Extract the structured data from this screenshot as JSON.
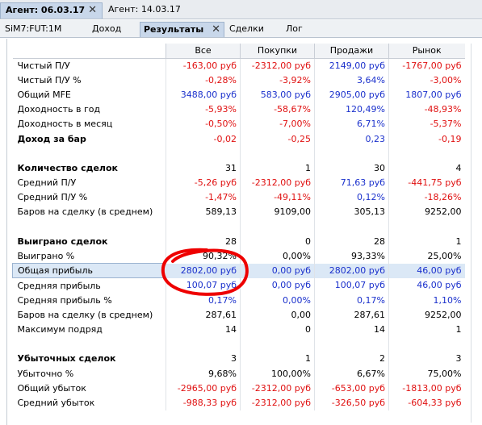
{
  "agent_tabs": [
    {
      "label": "Агент: 06.03.17",
      "active": true
    },
    {
      "label": "Агент: 14.03.17",
      "active": false
    }
  ],
  "sub_tabs": [
    {
      "label": "SiM7:FUT:1M"
    },
    {
      "label": "Доход"
    },
    {
      "label": "Результаты"
    },
    {
      "label": "Сделки"
    },
    {
      "label": "Лог"
    }
  ],
  "columns": [
    "Все",
    "Покупки",
    "Продажи",
    "Рынок"
  ],
  "rows": [
    {
      "label": "Чистый П/У",
      "values": [
        "-163,00 руб",
        "-2312,00 руб",
        "2149,00 руб",
        "-1767,00 руб"
      ],
      "colors": [
        "red",
        "red",
        "blue",
        "red"
      ]
    },
    {
      "label": "Чистый П/У %",
      "values": [
        "-0,28%",
        "-3,92%",
        "3,64%",
        "-3,00%"
      ],
      "colors": [
        "red",
        "red",
        "blue",
        "red"
      ]
    },
    {
      "label": "Общий MFE",
      "values": [
        "3488,00 руб",
        "583,00 руб",
        "2905,00 руб",
        "1807,00 руб"
      ],
      "colors": [
        "blue",
        "blue",
        "blue",
        "blue"
      ]
    },
    {
      "label": "Доходность в год",
      "values": [
        "-5,93%",
        "-58,67%",
        "120,49%",
        "-48,93%"
      ],
      "colors": [
        "red",
        "red",
        "blue",
        "red"
      ]
    },
    {
      "label": "Доходность в месяц",
      "values": [
        "-0,50%",
        "-7,00%",
        "6,71%",
        "-5,37%"
      ],
      "colors": [
        "red",
        "red",
        "blue",
        "red"
      ]
    },
    {
      "label": "Доход за бар",
      "values": [
        "-0,02",
        "-0,25",
        "0,23",
        "-0,19"
      ],
      "colors": [
        "red",
        "red",
        "blue",
        "red"
      ],
      "bold": true
    },
    {
      "spacer": true
    },
    {
      "label": "Количество сделок",
      "values": [
        "31",
        "1",
        "30",
        "4"
      ],
      "colors": [
        "black",
        "black",
        "black",
        "black"
      ],
      "bold": true
    },
    {
      "label": "Средний П/У",
      "values": [
        "-5,26 руб",
        "-2312,00 руб",
        "71,63 руб",
        "-441,75 руб"
      ],
      "colors": [
        "red",
        "red",
        "blue",
        "red"
      ]
    },
    {
      "label": "Средний П/У %",
      "values": [
        "-1,47%",
        "-49,11%",
        "0,12%",
        "-18,26%"
      ],
      "colors": [
        "red",
        "red",
        "blue",
        "red"
      ]
    },
    {
      "label": "Баров на сделку (в среднем)",
      "values": [
        "589,13",
        "9109,00",
        "305,13",
        "9252,00"
      ],
      "colors": [
        "black",
        "black",
        "black",
        "black"
      ]
    },
    {
      "spacer": true
    },
    {
      "label": "Выиграно сделок",
      "values": [
        "28",
        "0",
        "28",
        "1"
      ],
      "colors": [
        "black",
        "black",
        "black",
        "black"
      ],
      "bold": true
    },
    {
      "label": "Выиграно %",
      "values": [
        "90,32%",
        "0,00%",
        "93,33%",
        "25,00%"
      ],
      "colors": [
        "black",
        "black",
        "black",
        "black"
      ]
    },
    {
      "label": "Общая прибыль",
      "values": [
        "2802,00 руб",
        "0,00 руб",
        "2802,00 руб",
        "46,00 руб"
      ],
      "colors": [
        "blue",
        "blue",
        "blue",
        "blue"
      ],
      "highlight": true
    },
    {
      "label": "Средняя прибыль",
      "values": [
        "100,07 руб",
        "0,00 руб",
        "100,07 руб",
        "46,00 руб"
      ],
      "colors": [
        "blue",
        "blue",
        "blue",
        "blue"
      ]
    },
    {
      "label": "Средняя прибыль %",
      "values": [
        "0,17%",
        "0,00%",
        "0,17%",
        "1,10%"
      ],
      "colors": [
        "blue",
        "blue",
        "blue",
        "blue"
      ]
    },
    {
      "label": "Баров на сделку (в среднем)",
      "values": [
        "287,61",
        "0,00",
        "287,61",
        "9252,00"
      ],
      "colors": [
        "black",
        "black",
        "black",
        "black"
      ]
    },
    {
      "label": "Максимум подряд",
      "values": [
        "14",
        "0",
        "14",
        "1"
      ],
      "colors": [
        "black",
        "black",
        "black",
        "black"
      ]
    },
    {
      "spacer": true
    },
    {
      "label": "Убыточных сделок",
      "values": [
        "3",
        "1",
        "2",
        "3"
      ],
      "colors": [
        "black",
        "black",
        "black",
        "black"
      ],
      "bold": true
    },
    {
      "label": "Убыточно %",
      "values": [
        "9,68%",
        "100,00%",
        "6,67%",
        "75,00%"
      ],
      "colors": [
        "black",
        "black",
        "black",
        "black"
      ]
    },
    {
      "label": "Общий убыток",
      "values": [
        "-2965,00 руб",
        "-2312,00 руб",
        "-653,00 руб",
        "-1813,00 руб"
      ],
      "colors": [
        "red",
        "red",
        "red",
        "red"
      ]
    },
    {
      "label": "Средний убыток",
      "values": [
        "-988,33 руб",
        "-2312,00 руб",
        "-326,50 руб",
        "-604,33 руб"
      ],
      "colors": [
        "red",
        "red",
        "red",
        "red"
      ]
    }
  ],
  "annotation_color": "#ee0000"
}
